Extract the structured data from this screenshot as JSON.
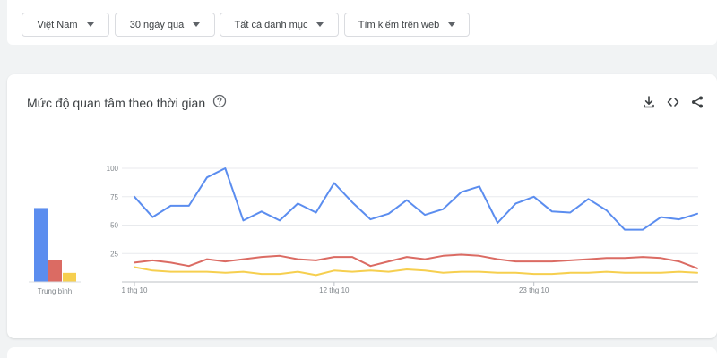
{
  "filters": [
    {
      "label": "Việt Nam"
    },
    {
      "label": "30 ngày qua"
    },
    {
      "label": "Tất cả danh mục"
    },
    {
      "label": "Tìm kiếm trên web"
    }
  ],
  "card": {
    "title": "Mức độ quan tâm theo thời gian",
    "help_icon": "help-circle-icon",
    "actions": [
      "download-icon",
      "embed-icon",
      "share-icon"
    ]
  },
  "colors": {
    "blue": "#5b8def",
    "red": "#db6b63",
    "yellow": "#f6cf4f",
    "grid": "#e8eaed"
  },
  "chart_data": [
    {
      "type": "bar",
      "xlabel": "Trung bình",
      "ylim": [
        0,
        100
      ],
      "values": [
        65,
        19,
        8
      ]
    },
    {
      "type": "line",
      "ylim": [
        0,
        100
      ],
      "y_ticks": [
        "100",
        "75",
        "50",
        "25"
      ],
      "x_tick_labels": [
        {
          "index": 0,
          "label": "1 thg 10"
        },
        {
          "index": 11,
          "label": "12 thg 10"
        },
        {
          "index": 22,
          "label": "23 thg 10"
        }
      ],
      "series": [
        {
          "values": [
            75,
            57,
            67,
            67,
            92,
            100,
            54,
            62,
            54,
            69,
            61,
            87,
            70,
            55,
            60,
            72,
            59,
            64,
            79,
            84,
            52,
            69,
            75,
            62,
            61,
            73,
            63,
            46,
            46,
            57,
            55,
            60
          ]
        },
        {
          "values": [
            17,
            19,
            17,
            14,
            20,
            18,
            20,
            22,
            23,
            20,
            19,
            22,
            22,
            14,
            18,
            22,
            20,
            23,
            24,
            23,
            20,
            18,
            18,
            18,
            19,
            20,
            21,
            21,
            22,
            21,
            18,
            12
          ]
        },
        {
          "values": [
            13,
            10,
            9,
            9,
            9,
            8,
            9,
            7,
            7,
            9,
            6,
            10,
            9,
            10,
            9,
            11,
            10,
            8,
            9,
            9,
            8,
            8,
            7,
            7,
            8,
            8,
            9,
            8,
            8,
            8,
            9,
            8
          ]
        }
      ]
    }
  ]
}
